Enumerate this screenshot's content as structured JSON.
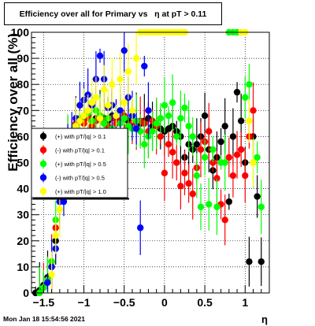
{
  "footer": {
    "timestamp": "Mon Jan 18 15:54:56 2021"
  },
  "chart_data": {
    "type": "scatter",
    "title": "Efficiency over all for Primary vs   η at pT > 0.11",
    "xlabel": "η",
    "ylabel": "Efficiency over all (%)",
    "xlim": [
      -1.65,
      1.3
    ],
    "ylim": [
      0,
      100
    ],
    "x_ticks": [
      -1.5,
      -1,
      -0.5,
      0,
      0.5,
      1
    ],
    "x_tick_labels": [
      "−1.5",
      "−1",
      "−0.5",
      "0",
      "0.5",
      "1"
    ],
    "y_ticks": [
      0,
      10,
      20,
      30,
      40,
      50,
      60,
      70,
      80,
      90,
      100
    ],
    "y_tick_labels": [
      "0",
      "10",
      "20",
      "30",
      "40",
      "50",
      "60",
      "70",
      "80",
      "90",
      "100"
    ],
    "grid": true,
    "legend_position": "middle-left",
    "series": [
      {
        "name": "(+) with pT/|q| > 0.1",
        "color": "#000000",
        "points": [
          [
            -1.6,
            0
          ],
          [
            -1.55,
            1
          ],
          [
            -1.5,
            3
          ],
          [
            -1.45,
            6
          ],
          [
            -1.4,
            10
          ],
          [
            -1.35,
            20
          ],
          [
            -1.3,
            35
          ],
          [
            -1.25,
            44
          ],
          [
            -1.2,
            53
          ],
          [
            -1.15,
            60
          ],
          [
            -1.1,
            64
          ],
          [
            -1.05,
            66
          ],
          [
            -1.0,
            67
          ],
          [
            -0.95,
            68
          ],
          [
            -0.9,
            66
          ],
          [
            -0.85,
            67
          ],
          [
            -0.8,
            68
          ],
          [
            -0.75,
            67
          ],
          [
            -0.7,
            66
          ],
          [
            -0.65,
            68
          ],
          [
            -0.6,
            67
          ],
          [
            -0.55,
            66
          ],
          [
            -0.5,
            67
          ],
          [
            -0.45,
            66
          ],
          [
            -0.4,
            65
          ],
          [
            -0.35,
            66
          ],
          [
            -0.3,
            65
          ],
          [
            -0.25,
            66
          ],
          [
            -0.2,
            67
          ],
          [
            -0.15,
            64
          ],
          [
            -0.1,
            65
          ],
          [
            -0.05,
            63
          ],
          [
            0.0,
            62
          ],
          [
            0.05,
            63
          ],
          [
            0.1,
            64
          ],
          [
            0.15,
            62
          ],
          [
            0.2,
            60
          ],
          [
            0.25,
            52
          ],
          [
            0.3,
            57
          ],
          [
            0.35,
            55
          ],
          [
            0.4,
            57
          ],
          [
            0.45,
            60
          ],
          [
            0.5,
            68
          ],
          [
            0.55,
            55
          ],
          [
            0.6,
            47
          ],
          [
            0.65,
            52
          ],
          [
            0.7,
            58
          ],
          [
            0.75,
            64
          ],
          [
            0.8,
            35
          ],
          [
            0.85,
            60
          ],
          [
            0.9,
            77
          ],
          [
            0.95,
            66
          ],
          [
            1.0,
            50
          ],
          [
            1.05,
            12
          ],
          [
            1.1,
            60
          ],
          [
            1.15,
            37
          ],
          [
            1.2,
            12
          ]
        ]
      },
      {
        "name": "(-) with pT/|q| > 0.1",
        "color": "#ff0000",
        "points": [
          [
            -1.5,
            2
          ],
          [
            -1.45,
            5
          ],
          [
            -1.4,
            12
          ],
          [
            -1.35,
            25
          ],
          [
            -1.3,
            38
          ],
          [
            -1.25,
            48
          ],
          [
            -1.2,
            57
          ],
          [
            -1.15,
            62
          ],
          [
            -1.1,
            65
          ],
          [
            -1.05,
            66
          ],
          [
            -1.0,
            65
          ],
          [
            -0.95,
            67
          ],
          [
            -0.9,
            64
          ],
          [
            -0.85,
            66
          ],
          [
            -0.8,
            68
          ],
          [
            -0.75,
            66
          ],
          [
            -0.7,
            64
          ],
          [
            -0.65,
            67
          ],
          [
            -0.6,
            65
          ],
          [
            -0.55,
            66
          ],
          [
            -0.5,
            68
          ],
          [
            -0.45,
            64
          ],
          [
            -0.4,
            65
          ],
          [
            -0.35,
            63
          ],
          [
            -0.3,
            66
          ],
          [
            -0.25,
            65
          ],
          [
            -0.2,
            62
          ],
          [
            -0.15,
            66
          ],
          [
            -0.1,
            64
          ],
          [
            -0.05,
            60
          ],
          [
            0.0,
            46
          ],
          [
            0.05,
            57
          ],
          [
            0.1,
            54
          ],
          [
            0.15,
            50
          ],
          [
            0.2,
            41
          ],
          [
            0.25,
            46
          ],
          [
            0.3,
            42
          ],
          [
            0.35,
            38
          ],
          [
            0.4,
            48
          ],
          [
            0.45,
            55
          ],
          [
            0.5,
            58
          ],
          [
            0.55,
            62
          ],
          [
            0.6,
            50
          ],
          [
            0.65,
            44
          ],
          [
            0.7,
            34
          ],
          [
            0.75,
            28
          ],
          [
            0.8,
            52
          ],
          [
            0.85,
            45
          ],
          [
            0.9,
            53
          ],
          [
            0.95,
            55
          ],
          [
            1.0,
            45
          ],
          [
            1.05,
            60
          ],
          [
            1.1,
            70
          ]
        ]
      },
      {
        "name": "(+) with pT/|q| > 0.5",
        "color": "#00ff00",
        "points": [
          [
            -1.55,
            0
          ],
          [
            -1.5,
            2
          ],
          [
            -1.45,
            5
          ],
          [
            -1.4,
            12
          ],
          [
            -1.35,
            28
          ],
          [
            -1.3,
            40
          ],
          [
            -1.25,
            50
          ],
          [
            -1.2,
            58
          ],
          [
            -1.15,
            62
          ],
          [
            -1.1,
            64
          ],
          [
            -1.05,
            67
          ],
          [
            -1.0,
            68
          ],
          [
            -0.95,
            69
          ],
          [
            -0.9,
            66
          ],
          [
            -0.85,
            70
          ],
          [
            -0.8,
            68
          ],
          [
            -0.75,
            65
          ],
          [
            -0.7,
            67
          ],
          [
            -0.65,
            63
          ],
          [
            -0.6,
            68
          ],
          [
            -0.55,
            65
          ],
          [
            -0.5,
            67
          ],
          [
            -0.45,
            64
          ],
          [
            -0.4,
            63
          ],
          [
            -0.35,
            66
          ],
          [
            -0.3,
            62
          ],
          [
            -0.25,
            57
          ],
          [
            -0.2,
            60
          ],
          [
            -0.15,
            62
          ],
          [
            -0.1,
            65
          ],
          [
            -0.05,
            67
          ],
          [
            0.0,
            72
          ],
          [
            0.05,
            68
          ],
          [
            0.1,
            73
          ],
          [
            0.15,
            60
          ],
          [
            0.2,
            67
          ],
          [
            0.25,
            71
          ],
          [
            0.3,
            64
          ],
          [
            0.35,
            60
          ],
          [
            0.4,
            45
          ],
          [
            0.45,
            33
          ],
          [
            0.5,
            52
          ],
          [
            0.55,
            34
          ],
          [
            0.6,
            55
          ],
          [
            0.65,
            33
          ],
          [
            0.7,
            50
          ],
          [
            0.75,
            50
          ],
          [
            0.8,
            100
          ],
          [
            0.85,
            100
          ],
          [
            0.9,
            100
          ],
          [
            0.95,
            100
          ],
          [
            1.0,
            75
          ],
          [
            1.05,
            80
          ],
          [
            1.1,
            50
          ],
          [
            1.15,
            52
          ],
          [
            1.2,
            33
          ]
        ]
      },
      {
        "name": "(-) with pT/|q| > 0.5",
        "color": "#0000ff",
        "points": [
          [
            -1.45,
            4
          ],
          [
            -1.4,
            10
          ],
          [
            -1.35,
            17
          ],
          [
            -1.3,
            35
          ],
          [
            -1.25,
            35
          ],
          [
            -1.2,
            55
          ],
          [
            -1.15,
            62
          ],
          [
            -1.1,
            67
          ],
          [
            -1.05,
            72
          ],
          [
            -1.0,
            74
          ],
          [
            -0.95,
            76
          ],
          [
            -0.9,
            72
          ],
          [
            -0.85,
            82
          ],
          [
            -0.8,
            91
          ],
          [
            -0.75,
            82
          ],
          [
            -0.7,
            71
          ],
          [
            -0.65,
            72
          ],
          [
            -0.6,
            68
          ],
          [
            -0.55,
            70
          ],
          [
            -0.5,
            93
          ],
          [
            -0.45,
            75
          ],
          [
            -0.4,
            68
          ],
          [
            -0.35,
            63
          ],
          [
            -0.3,
            25
          ],
          [
            -0.25,
            87
          ],
          [
            -0.2,
            70
          ]
        ]
      },
      {
        "name": "(+) with pT/|q| > 1.0",
        "color": "#ffff00",
        "points": [
          [
            -1.4,
            7
          ],
          [
            -1.35,
            22
          ],
          [
            -1.3,
            32
          ],
          [
            -1.25,
            43
          ],
          [
            -1.2,
            52
          ],
          [
            -1.15,
            58
          ],
          [
            -1.1,
            64
          ],
          [
            -1.05,
            66
          ],
          [
            -1.0,
            68
          ],
          [
            -0.95,
            70
          ],
          [
            -0.9,
            73
          ],
          [
            -0.85,
            75
          ],
          [
            -0.8,
            67
          ],
          [
            -0.75,
            78
          ],
          [
            -0.7,
            72
          ],
          [
            -0.65,
            80
          ],
          [
            -0.6,
            68
          ],
          [
            -0.55,
            82
          ],
          [
            -0.5,
            73
          ],
          [
            -0.45,
            85
          ],
          [
            -0.4,
            70
          ],
          [
            -0.35,
            90
          ],
          [
            -0.3,
            100
          ],
          [
            -0.25,
            100
          ],
          [
            -0.2,
            100
          ],
          [
            -0.15,
            100
          ],
          [
            -0.1,
            100
          ],
          [
            -0.05,
            100
          ],
          [
            0.0,
            100
          ],
          [
            0.05,
            100
          ],
          [
            0.1,
            100
          ],
          [
            0.15,
            100
          ],
          [
            0.2,
            100
          ],
          [
            0.25,
            100
          ],
          [
            0.95,
            100
          ],
          [
            1.0,
            100
          ],
          [
            1.05,
            66
          ],
          [
            1.1,
            50
          ]
        ]
      }
    ]
  }
}
